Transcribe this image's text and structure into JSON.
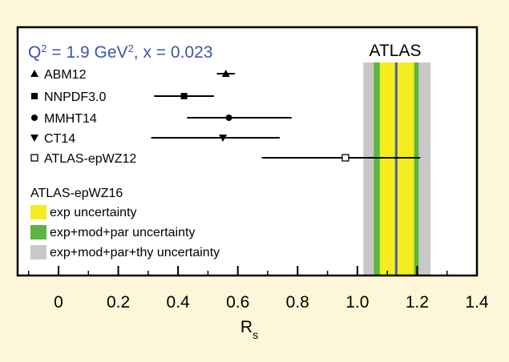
{
  "chart_data": {
    "type": "scatter",
    "title_parts": [
      "Q",
      "2",
      " = 1.9 GeV",
      "2",
      ", x = 0.023"
    ],
    "experiment_label": "ATLAS",
    "xlabel_main": "R",
    "xlabel_sub": "s",
    "xlim": [
      -0.1,
      1.4
    ],
    "xticks": [
      0,
      0.2,
      0.4,
      0.6,
      0.8,
      1.0,
      1.2,
      1.4
    ],
    "xtick_labels": [
      "0",
      "0.2",
      "0.4",
      "0.6",
      "0.8",
      "1.0",
      "1.2",
      "1.4"
    ],
    "series": [
      {
        "name": "ABM12",
        "marker": "triangle-up",
        "value": 0.56,
        "err_low": 0.53,
        "err_high": 0.59
      },
      {
        "name": "NNPDF3.0",
        "marker": "square",
        "value": 0.42,
        "err_low": 0.32,
        "err_high": 0.52
      },
      {
        "name": "MMHT14",
        "marker": "circle",
        "value": 0.57,
        "err_low": 0.43,
        "err_high": 0.78
      },
      {
        "name": "CT14",
        "marker": "triangle-down",
        "value": 0.55,
        "err_low": 0.31,
        "err_high": 0.74
      },
      {
        "name": "ATLAS-epWZ12",
        "marker": "open-square",
        "value": 0.96,
        "err_low": 0.68,
        "err_high": 1.21
      }
    ],
    "band_result": {
      "name": "ATLAS-epWZ16",
      "central": 1.13,
      "bands": [
        {
          "label": "exp+mod+par+thy uncertainty",
          "low": 1.02,
          "high": 1.245,
          "color": "#c8c8c8"
        },
        {
          "label": "exp+mod+par uncertainty",
          "low": 1.055,
          "high": 1.205,
          "color": "#5ab640"
        },
        {
          "label": "exp uncertainty",
          "low": 1.075,
          "high": 1.19,
          "color": "#f4ec1c"
        }
      ],
      "legend_order": [
        "exp uncertainty",
        "exp+mod+par uncertainty",
        "exp+mod+par+thy uncertainty"
      ],
      "central_line_color": "#4a5fa8"
    },
    "colors": {
      "background": "#fdf6d8",
      "plot_background": "#ffffff",
      "title_color": "#3a56a8"
    }
  }
}
